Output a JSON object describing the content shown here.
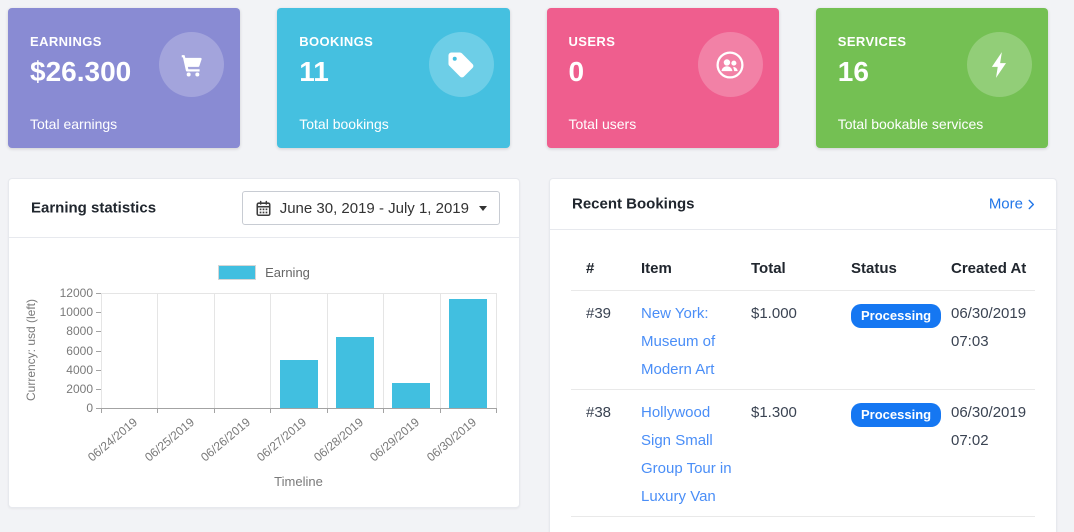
{
  "colors": {
    "badge": "#1577F2",
    "link": "#4A8EF7",
    "more_link": "#2176E8",
    "page_background": "#F2F3F6"
  },
  "stat_cards": [
    {
      "title": "EARNINGS",
      "value": "$26.300",
      "label": "Total earnings",
      "color": "#898BD3",
      "icon": "cart-icon"
    },
    {
      "title": "BOOKINGS",
      "value": "11",
      "label": "Total bookings",
      "color": "#45C0E0",
      "icon": "tag-icon"
    },
    {
      "title": "USERS",
      "value": "0",
      "label": "Total users",
      "color": "#EF5E8E",
      "icon": "users-icon"
    },
    {
      "title": "SERVICES",
      "value": "16",
      "label": "Total bookable services",
      "color": "#74C053",
      "icon": "bolt-icon"
    }
  ],
  "earning_panel": {
    "title": "Earning statistics",
    "date_range": "June 30, 2019 - July 1, 2019"
  },
  "chart_data": {
    "type": "bar",
    "categories": [
      "06/24/2019",
      "06/25/2019",
      "06/26/2019",
      "06/27/2019",
      "06/28/2019",
      "06/29/2019",
      "06/30/2019"
    ],
    "series": [
      {
        "name": "Earning",
        "color": "#41BFE0",
        "values": [
          0,
          0,
          0,
          5000,
          7400,
          2600,
          11350
        ]
      }
    ],
    "title": "",
    "xlabel": "Timeline",
    "ylabel": "Currency: usd (left)",
    "ylim": [
      0,
      12000
    ],
    "yticks": [
      0,
      2000,
      4000,
      6000,
      8000,
      10000,
      12000
    ],
    "grid": "vertical",
    "legend_position": "top"
  },
  "bookings_panel": {
    "title": "Recent Bookings",
    "more_label": "More",
    "columns": [
      "#",
      "Item",
      "Total",
      "Status",
      "Created At"
    ],
    "rows": [
      {
        "id": "#39",
        "item": "New York: Museum of Modern Art",
        "total": "$1.000",
        "status": "Processing",
        "created_date": "06/30/2019",
        "created_time": "07:03"
      },
      {
        "id": "#38",
        "item": "Hollywood Sign Small Group Tour in Luxury Van",
        "total": "$1.300",
        "status": "Processing",
        "created_date": "06/30/2019",
        "created_time": "07:02"
      }
    ]
  }
}
